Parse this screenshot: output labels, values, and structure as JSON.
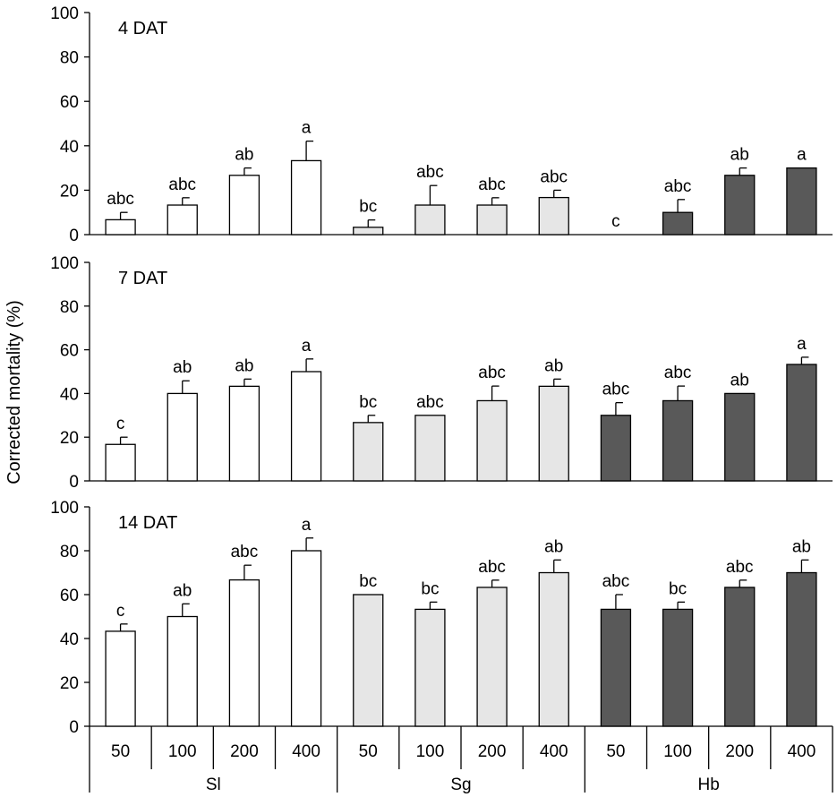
{
  "chart_data": {
    "type": "bar",
    "ylabel": "Corrected mortality (%)",
    "ylim": [
      0,
      100
    ],
    "yticks": [
      0,
      20,
      40,
      60,
      80,
      100
    ],
    "categories": [
      "50",
      "100",
      "200",
      "400",
      "50",
      "100",
      "200",
      "400",
      "50",
      "100",
      "200",
      "400"
    ],
    "groups": [
      {
        "name": "Sl",
        "color": "#ffffff"
      },
      {
        "name": "Sg",
        "color": "#e6e6e6"
      },
      {
        "name": "Hb",
        "color": "#595959"
      }
    ],
    "panels": [
      {
        "label": "4 DAT",
        "values": [
          6.7,
          13.3,
          26.7,
          33.3,
          3.3,
          13.3,
          13.3,
          16.7,
          0,
          10.0,
          26.7,
          30.0
        ],
        "errors": [
          3.3,
          3.3,
          3.3,
          8.8,
          3.3,
          8.8,
          3.3,
          3.3,
          0,
          5.8,
          3.3,
          0
        ],
        "letters": [
          "abc",
          "abc",
          "ab",
          "a",
          "bc",
          "abc",
          "abc",
          "abc",
          "c",
          "abc",
          "ab",
          "a"
        ]
      },
      {
        "label": "7 DAT",
        "values": [
          16.7,
          40.0,
          43.3,
          50.0,
          26.7,
          30.0,
          36.7,
          43.3,
          30.0,
          36.7,
          40.0,
          53.3
        ],
        "errors": [
          3.3,
          5.8,
          3.3,
          5.8,
          3.3,
          0,
          6.7,
          3.3,
          5.8,
          6.7,
          0,
          3.3
        ],
        "letters": [
          "c",
          "ab",
          "ab",
          "a",
          "bc",
          "abc",
          "abc",
          "ab",
          "abc",
          "abc",
          "ab",
          "a"
        ]
      },
      {
        "label": "14 DAT",
        "values": [
          43.3,
          50.0,
          66.7,
          80.0,
          60.0,
          53.3,
          63.3,
          70.0,
          53.3,
          53.3,
          63.3,
          70.0
        ],
        "errors": [
          3.3,
          5.8,
          6.7,
          5.8,
          0,
          3.3,
          3.3,
          5.8,
          6.7,
          3.3,
          3.3,
          5.8
        ],
        "letters": [
          "c",
          "ab",
          "abc",
          "a",
          "bc",
          "bc",
          "abc",
          "ab",
          "abc",
          "bc",
          "abc",
          "ab"
        ]
      }
    ]
  }
}
